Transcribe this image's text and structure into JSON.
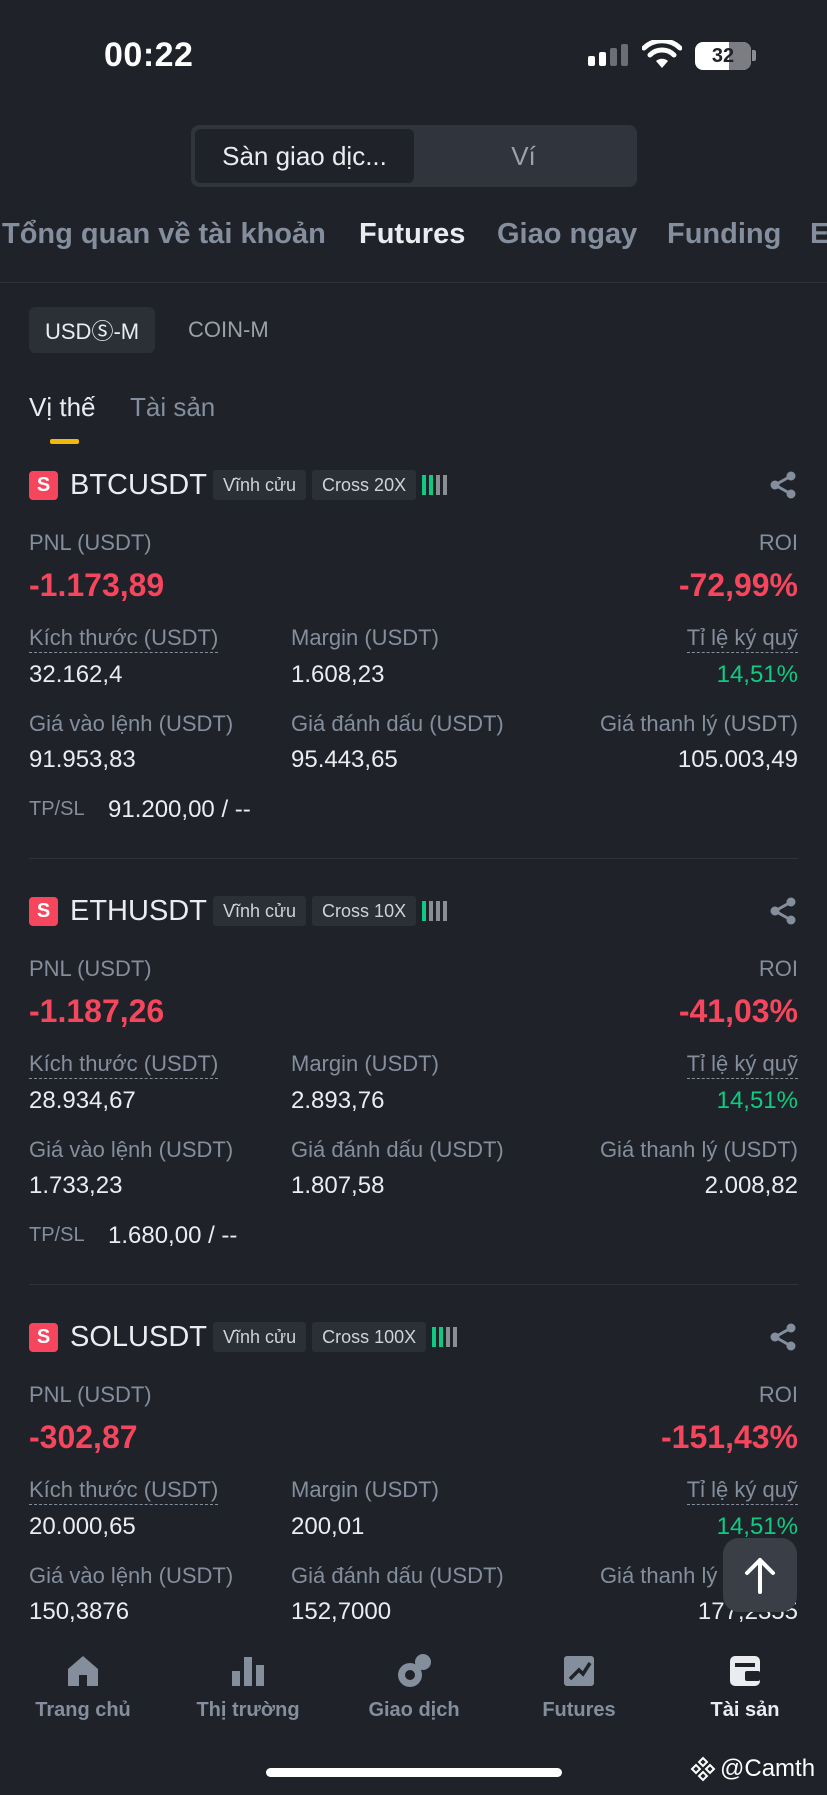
{
  "status_bar": {
    "time": "00:22",
    "battery": "32"
  },
  "segment": {
    "items": [
      "Sàn giao dịc...",
      "Ví"
    ],
    "active": 0
  },
  "tabs": [
    "Tổng quan về tài khoản",
    "Futures",
    "Giao ngay",
    "Funding",
    "E"
  ],
  "sub_tabs": [
    "USDⓈ-M",
    "COIN-M"
  ],
  "position_tabs": [
    "Vị thế",
    "Tài sản"
  ],
  "labels": {
    "pnl": "PNL (USDT)",
    "roi": "ROI",
    "size": "Kích thước (USDT)",
    "margin": "Margin (USDT)",
    "margin_ratio": "Tỉ lệ ký quỹ",
    "entry": "Giá vào lệnh (USDT)",
    "mark": "Giá đánh dấu (USDT)",
    "liq": "Giá thanh lý (USDT)",
    "tpsl": "TP/SL",
    "liq_short": "Giá thanh lý"
  },
  "positions": [
    {
      "side": "S",
      "symbol": "BTCUSDT",
      "type": "Vĩnh cửu",
      "leverage": "Cross 20X",
      "pnl": "-1.173,89",
      "roi": "-72,99%",
      "size": "32.162,4",
      "margin": "1.608,23",
      "margin_ratio": "14,51%",
      "entry": "91.953,83",
      "mark": "95.443,65",
      "liq": "105.003,49",
      "tpsl": "91.200,00 / --"
    },
    {
      "side": "S",
      "symbol": "ETHUSDT",
      "type": "Vĩnh cửu",
      "leverage": "Cross 10X",
      "pnl": "-1.187,26",
      "roi": "-41,03%",
      "size": "28.934,67",
      "margin": "2.893,76",
      "margin_ratio": "14,51%",
      "entry": "1.733,23",
      "mark": "1.807,58",
      "liq": "2.008,82",
      "tpsl": "1.680,00 / --"
    },
    {
      "side": "S",
      "symbol": "SOLUSDT",
      "type": "Vĩnh cửu",
      "leverage": "Cross 100X",
      "pnl": "-302,87",
      "roi": "-151,43%",
      "size": "20.000,65",
      "margin": "200,01",
      "margin_ratio": "14,51%",
      "entry": "150,3876",
      "mark": "152,7000",
      "liq": "177,2355"
    }
  ],
  "nav": [
    "Trang chủ",
    "Thị trường",
    "Giao dịch",
    "Futures",
    "Tài sản"
  ],
  "watermark": "@Camth",
  "colors": {
    "loss": "#f6465d",
    "gain": "#0ecb81",
    "accent": "#f0b90b",
    "bg": "#1f2229"
  }
}
